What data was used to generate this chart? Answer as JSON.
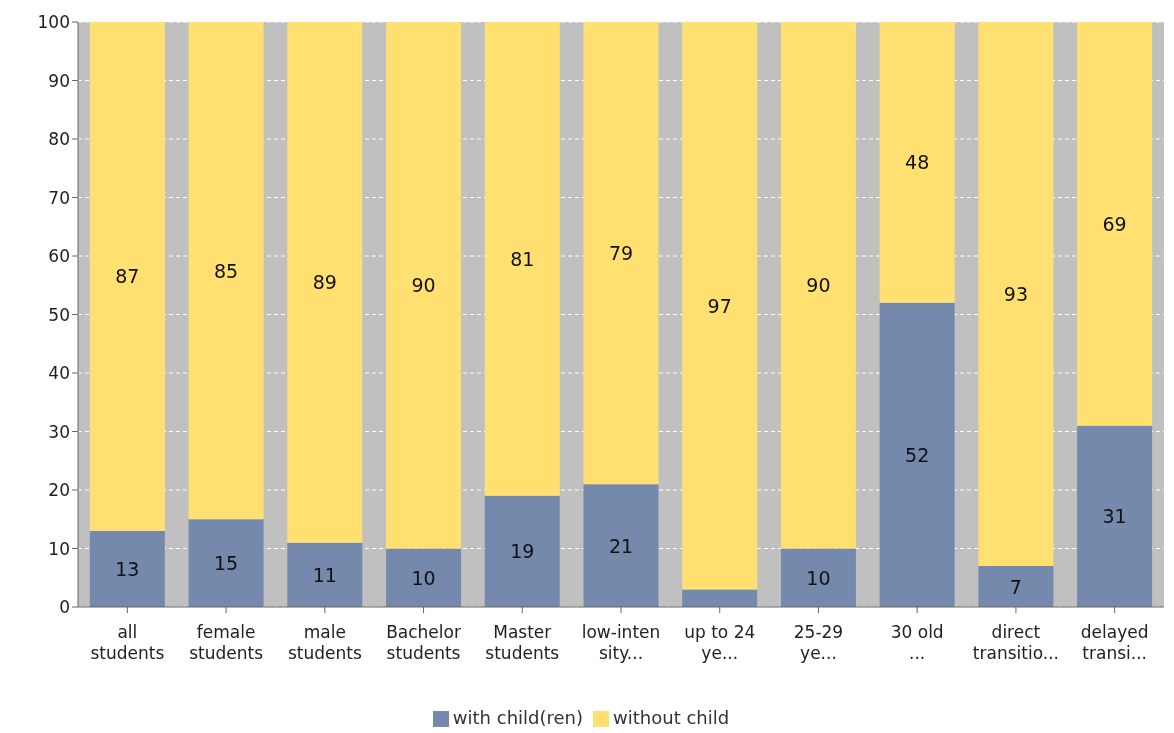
{
  "chart_data": {
    "type": "bar",
    "stacked": true,
    "categories": [
      "all students",
      "female students",
      "male students",
      "Bachelor students",
      "Master students",
      "low-intensity...",
      "up to 24 ye...",
      "25-29 ye...",
      "30 old ...",
      "direct transitio...",
      "delayed transi..."
    ],
    "series": [
      {
        "name": "with child(ren)",
        "color": "#7489ab",
        "values": [
          13,
          15,
          11,
          10,
          19,
          21,
          3,
          10,
          52,
          7,
          31
        ],
        "value_labels": [
          "13",
          "15",
          "11",
          "10",
          "19",
          "21",
          null,
          "10",
          "52",
          "7",
          "31"
        ]
      },
      {
        "name": "without child",
        "color": "#ffe070",
        "values": [
          87,
          85,
          89,
          90,
          81,
          79,
          97,
          90,
          48,
          93,
          69
        ],
        "value_labels": [
          "87",
          "85",
          "89",
          "90",
          "81",
          "79",
          "97",
          "90",
          "48",
          "93",
          "69"
        ]
      }
    ],
    "ylim": [
      0,
      100
    ],
    "yticks": [
      0,
      10,
      20,
      30,
      40,
      50,
      60,
      70,
      80,
      90,
      100
    ],
    "grid": "y",
    "legend": "bottom"
  }
}
